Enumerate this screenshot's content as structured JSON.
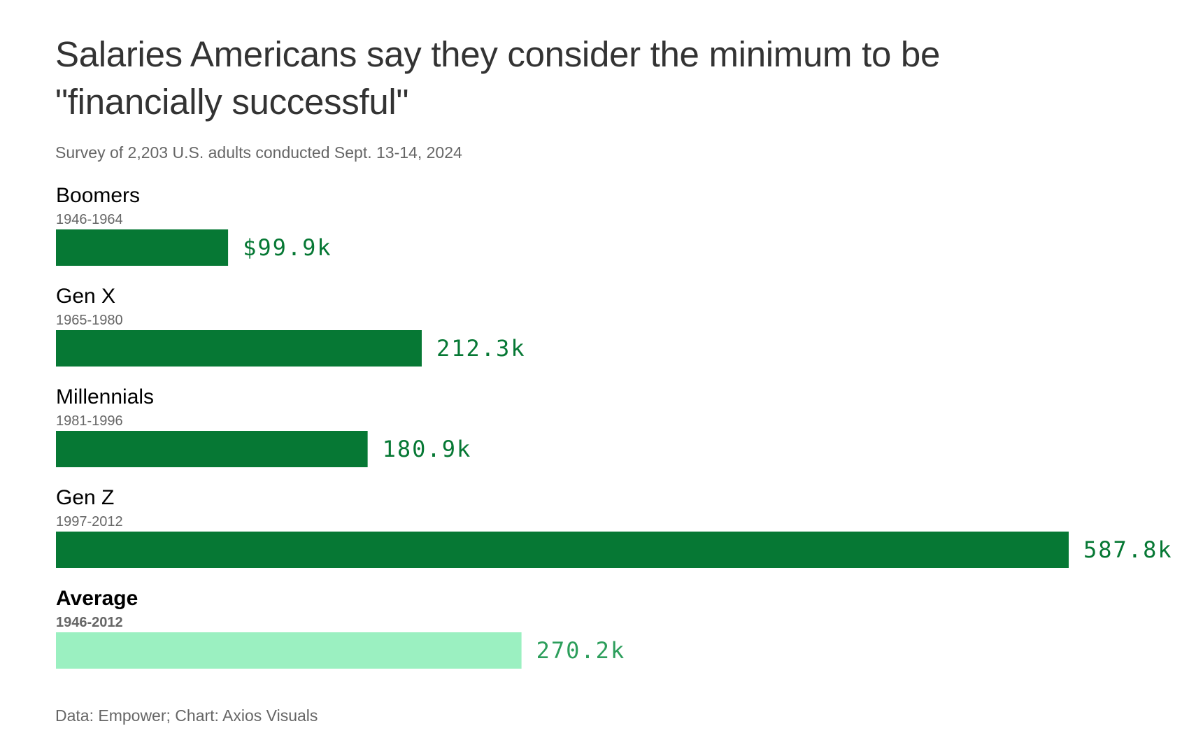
{
  "title": "Salaries Americans say they consider the minimum to be \"financially successful\"",
  "subtitle": "Survey of 2,203 U.S. adults conducted Sept. 13-14, 2024",
  "footer": "Data: Empower; Chart: Axios Visuals",
  "colors": {
    "bar": "#067834",
    "bar_average": "#9bf0c1",
    "value_text": "#067834",
    "value_text_average": "#2c9e5b"
  },
  "chart_data": {
    "type": "bar",
    "orientation": "horizontal",
    "title": "Salaries Americans say they consider the minimum to be \"financially successful\"",
    "subtitle": "Survey of 2,203 U.S. adults conducted Sept. 13-14, 2024",
    "categories": [
      "Boomers",
      "Gen X",
      "Millennials",
      "Gen Z",
      "Average"
    ],
    "sublabels": [
      "1946-1964",
      "1965-1980",
      "1981-1996",
      "1997-2012",
      "1946-2012"
    ],
    "values": [
      99.9,
      212.3,
      180.9,
      587.8,
      270.2
    ],
    "value_labels": [
      "$99.9k",
      "212.3k",
      "180.9k",
      "587.8k",
      "270.2k"
    ],
    "unit": "thousand USD",
    "xlim": [
      0,
      587.8
    ],
    "grid": false,
    "legend": "none",
    "highlight": [
      false,
      false,
      false,
      false,
      true
    ]
  }
}
